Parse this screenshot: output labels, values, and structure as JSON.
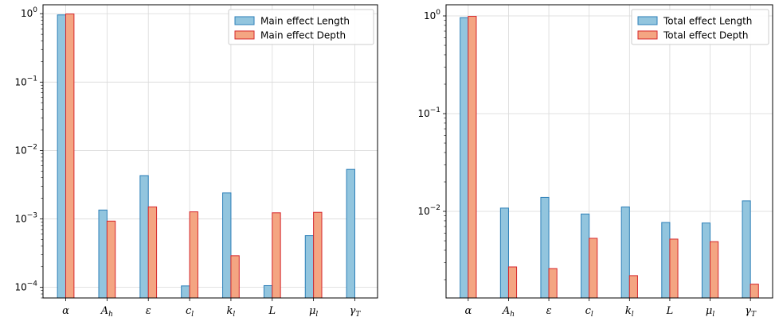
{
  "colors": {
    "length_fill": "#92c5de",
    "length_edge": "#2c7fb8",
    "depth_fill": "#f4a582",
    "depth_edge": "#d6262b",
    "grid": "#d9d9d9"
  },
  "chart_data": [
    {
      "type": "bar",
      "yscale": "log",
      "ylim": [
        7e-05,
        1.35
      ],
      "grid": true,
      "legend_position": "top-right",
      "categories": [
        "α",
        "A",
        "ε",
        "c",
        "k",
        "L",
        "μ",
        "γ"
      ],
      "category_subscripts": [
        "",
        "h",
        "",
        "l",
        "l",
        "",
        "l",
        "T"
      ],
      "yticks": [
        {
          "base": "10",
          "exp": "0",
          "value": 1
        },
        {
          "base": "10",
          "exp": "−1",
          "value": 0.1
        },
        {
          "base": "10",
          "exp": "−2",
          "value": 0.01
        },
        {
          "base": "10",
          "exp": "−3",
          "value": 0.001
        },
        {
          "base": "10",
          "exp": "−4",
          "value": 0.0001
        }
      ],
      "series": [
        {
          "name": "Main effect Length",
          "values": [
            0.96,
            0.00135,
            0.0043,
            0.000105,
            0.0024,
            0.000106,
            0.00057,
            0.0053
          ]
        },
        {
          "name": "Main effect Depth",
          "values": [
            0.99,
            0.00093,
            0.0015,
            0.00127,
            0.00029,
            0.00123,
            0.00125,
            null
          ]
        }
      ]
    },
    {
      "type": "bar",
      "yscale": "log",
      "ylim": [
        0.0013,
        1.3
      ],
      "grid": true,
      "legend_position": "top-right",
      "categories": [
        "α",
        "A",
        "ε",
        "c",
        "k",
        "L",
        "μ",
        "γ"
      ],
      "category_subscripts": [
        "",
        "h",
        "",
        "l",
        "l",
        "",
        "l",
        "T"
      ],
      "yticks": [
        {
          "base": "10",
          "exp": "0",
          "value": 1
        },
        {
          "base": "10",
          "exp": "−1",
          "value": 0.1
        },
        {
          "base": "10",
          "exp": "−2",
          "value": 0.01
        }
      ],
      "series": [
        {
          "name": "Total effect Length",
          "values": [
            0.96,
            0.0108,
            0.0139,
            0.0094,
            0.0111,
            0.0077,
            0.0076,
            0.0128
          ]
        },
        {
          "name": "Total effect Depth",
          "values": [
            0.99,
            0.0027,
            0.0026,
            0.0053,
            0.0022,
            0.0052,
            0.0049,
            0.0018
          ]
        }
      ]
    }
  ]
}
